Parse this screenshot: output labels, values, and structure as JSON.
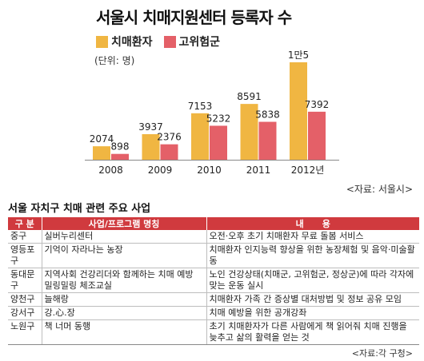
{
  "chart_data": {
    "type": "bar",
    "title": "서울시 치매지원센터 등록자 수",
    "unit_label": "(단위: 명)",
    "categories": [
      "2008",
      "2009",
      "2010",
      "2011",
      "2012년"
    ],
    "series": [
      {
        "name": "치매환자",
        "values": [
          2074,
          3937,
          7153,
          8591,
          15000
        ],
        "labels": [
          "2074",
          "3937",
          "7153",
          "8591",
          "1만5"
        ],
        "color": "#f0b642"
      },
      {
        "name": "고위험군",
        "values": [
          898,
          2376,
          5232,
          5838,
          7392
        ],
        "labels": [
          "898",
          "2376",
          "5232",
          "5838",
          "7392"
        ],
        "color": "#e46068"
      }
    ],
    "ylim": [
      0,
      15000
    ],
    "source": "<자료: 서울시>"
  },
  "table": {
    "title": "서울 자치구 치매 관련 주요 사업",
    "headers": [
      "구 분",
      "사업/프로그램 명칭",
      "내      용"
    ],
    "rows": [
      [
        "중구",
        "실버누리센터",
        "오전·오후 초기 치매환자 무료 돌봄 서비스"
      ],
      [
        "영등포구",
        "기억이 자라나는 농장",
        "치매환자 인지능력 향상을 위한 농장체험 및 음악·미술활동"
      ],
      [
        "동대문구",
        "지역사회 건강리더와 함께하는 치매 예방 밀링밀링 체조교실",
        "노인 건강상태(치매군, 고위험군, 정상군)에 따라 각자에 맞는 운동 실시"
      ],
      [
        "양천구",
        "늘해랑",
        "치매환자 가족 간 증상별 대처방법 및 정보 공유 모임"
      ],
      [
        "강서구",
        "강.心.장",
        "치매 예방을 위한 공개강좌"
      ],
      [
        "노원구",
        "책 너머 동행",
        "초기 치매환자가 다른 사람에게 책 읽어줘 치매 진행을 늦추고 삶의 활력을 얻는 것"
      ]
    ],
    "source": "<자료:각 구청>"
  }
}
